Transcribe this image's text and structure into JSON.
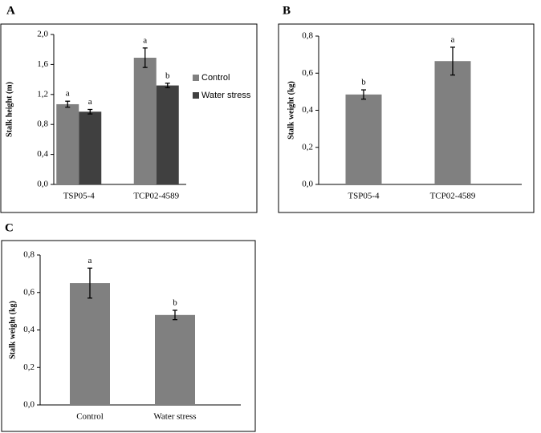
{
  "chart_data": [
    {
      "type": "bar",
      "panel_label": "A",
      "y_label": "Stalk height (m)",
      "categories": [
        "TSP05-4",
        "TCP02-4589"
      ],
      "series": [
        {
          "name": "Control",
          "color": "#808080",
          "values": [
            1.07,
            1.69
          ],
          "errors": [
            0.04,
            0.13
          ],
          "letters": [
            "a",
            "a"
          ]
        },
        {
          "name": "Water stress",
          "color": "#404040",
          "values": [
            0.97,
            1.32
          ],
          "errors": [
            0.03,
            0.03
          ],
          "letters": [
            "a",
            "b"
          ]
        }
      ],
      "ylim": [
        0,
        2.0
      ],
      "yticks": [
        {
          "value": 0,
          "label": "0,0"
        },
        {
          "value": 0.4,
          "label": "0,4"
        },
        {
          "value": 0.8,
          "label": "0,8"
        },
        {
          "value": 1.2,
          "label": "1,2"
        },
        {
          "value": 1.6,
          "label": "1,6"
        },
        {
          "value": 2.0,
          "label": "2,0"
        }
      ]
    },
    {
      "type": "bar",
      "panel_label": "B",
      "y_label": "Stalk weight (kg)",
      "categories": [
        "TSP05-4",
        "TCP02-4589"
      ],
      "series": [
        {
          "color": "#808080",
          "values": [
            0.485,
            0.665
          ],
          "errors": [
            0.025,
            0.075
          ],
          "letters": [
            "b",
            "a"
          ]
        }
      ],
      "ylim": [
        0,
        0.8
      ],
      "yticks": [
        {
          "value": 0,
          "label": "0,0"
        },
        {
          "value": 0.2,
          "label": "0,2"
        },
        {
          "value": 0.4,
          "label": "0,4"
        },
        {
          "value": 0.6,
          "label": "0,6"
        },
        {
          "value": 0.8,
          "label": "0,8"
        }
      ]
    },
    {
      "type": "bar",
      "panel_label": "C",
      "y_label": "Stalk weight (kg)",
      "categories": [
        "Control",
        "Water stress"
      ],
      "series": [
        {
          "color": "#808080",
          "values": [
            0.65,
            0.48
          ],
          "errors": [
            0.08,
            0.025
          ],
          "letters": [
            "a",
            "b"
          ]
        }
      ],
      "ylim": [
        0,
        0.8
      ],
      "yticks": [
        {
          "value": 0,
          "label": "0,0"
        },
        {
          "value": 0.2,
          "label": "0,2"
        },
        {
          "value": 0.4,
          "label": "0,4"
        },
        {
          "value": 0.6,
          "label": "0,6"
        },
        {
          "value": 0.8,
          "label": "0,8"
        }
      ]
    }
  ]
}
